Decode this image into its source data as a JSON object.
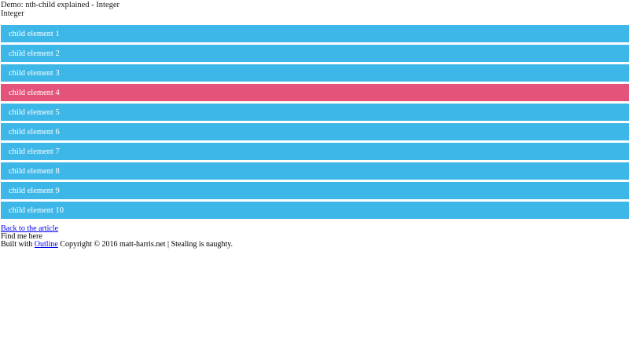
{
  "header": {
    "title": "Demo: nth-child explained - Integer",
    "subtitle": "Integer"
  },
  "bars": {
    "highlighted_index": 4,
    "items": [
      {
        "label": "child element 1"
      },
      {
        "label": "child element 2"
      },
      {
        "label": "child element 3"
      },
      {
        "label": "child element 4"
      },
      {
        "label": "child element 5"
      },
      {
        "label": "child element 6"
      },
      {
        "label": "child element 7"
      },
      {
        "label": "child element 8"
      },
      {
        "label": "child element 9"
      },
      {
        "label": "child element 10"
      }
    ]
  },
  "footer": {
    "back_link": "Back to the article",
    "find_me": "Find me here",
    "built_prefix": "Built with",
    "outline_link": "Outline",
    "built_suffix": "Copyright © 2016 matt-harris.net | Stealing is naughty."
  },
  "colors": {
    "bar_blue": "#3db7e8",
    "bar_pink": "#e4537a",
    "bar_text": "#ffffff",
    "link": "#0000ee"
  }
}
